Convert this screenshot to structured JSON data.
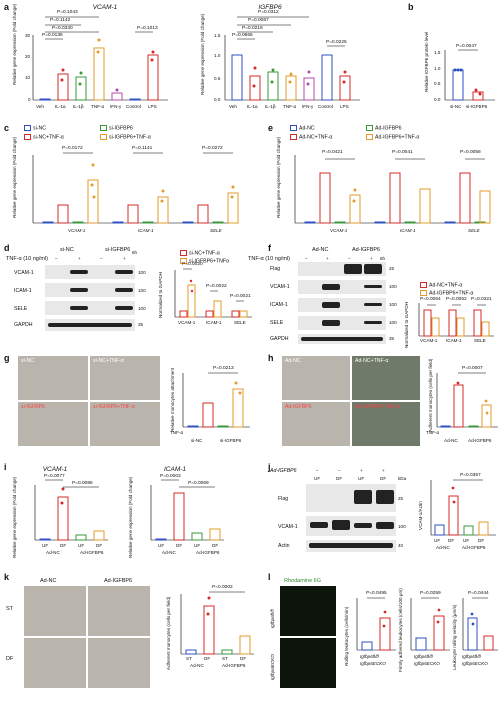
{
  "panels": {
    "a": {
      "label": "a",
      "left": {
        "title": "VCAM-1",
        "ylabel": "Relative gene expression (Fold change)",
        "yticks": [
          "0",
          "10",
          "20",
          "30"
        ],
        "categories": [
          "Veh",
          "IL-1α",
          "IL-1β",
          "TNF-α",
          "IFN-γ",
          "Control",
          "LPS"
        ],
        "sig": [
          "P=0.1043",
          "P=0.1142",
          "P=0.0340",
          "P=0.0136",
          "P=0.1013"
        ]
      },
      "right": {
        "title": "IGFBP6",
        "ylabel": "Relative gene expression (Fold change)",
        "yticks": [
          "0.0",
          "0.5",
          "1.0",
          "1.5"
        ],
        "categories": [
          "Veh",
          "IL-1α",
          "IL-1β",
          "TNF-α",
          "IFN-γ",
          "Control",
          "LPS"
        ],
        "sig": [
          "P=0.0312",
          "P=0.0087",
          "P=0.0218",
          "P=0.0666",
          "P=0.0225"
        ]
      }
    },
    "b": {
      "label": "b",
      "ylabel": "Relative IGFBP6 protein level",
      "categories": [
        "si-NC",
        "si-IGFBP6"
      ],
      "sig": "P=0.0047",
      "yticks": [
        "0.0",
        "0.5",
        "1.0",
        "1.5"
      ]
    },
    "c": {
      "label": "c",
      "legend": [
        "si-NC",
        "si-NC+TNF-α",
        "si-IGFBP6",
        "si-IGFBP6+TNF-α"
      ],
      "ylabel": "Relative gene expression (Fold change)",
      "categories": [
        "VCAM-1",
        "ICAM-1",
        "SELE"
      ],
      "sig": [
        "P=0.0172",
        "P=0.1141",
        "P=0.0272"
      ]
    },
    "e": {
      "label": "e",
      "legend": [
        "Ad-NC",
        "Ad-NC+TNF-α",
        "Ad-IGFBP6",
        "Ad-IGFBP6+TNF-α"
      ],
      "ylabel": "Relative gene expression (Fold change)",
      "categories": [
        "VCAM-1",
        "ICAM-1",
        "SELE"
      ],
      "sig": [
        "P=0.0421",
        "P=0.0041",
        "P=0.0058"
      ]
    },
    "d": {
      "label": "d",
      "groups": [
        "si-NC",
        "si-IGFBP6"
      ],
      "treatment": "TNF-α (10 ng/ml)",
      "lanes": [
        "–",
        "+",
        "–",
        "+"
      ],
      "time": "6h",
      "rows": [
        "VCAM-1",
        "ICAM-1",
        "SELE",
        "GAPDH"
      ],
      "kda": [
        "100",
        "100",
        "100",
        "35"
      ],
      "legend": [
        "si-NC+TNF-α",
        "si-IGFBP6+TNFα"
      ],
      "ylabel": "Normalized to GAPDH",
      "categories": [
        "VCAM-1",
        "ICAM-1",
        "SELE"
      ],
      "sig": [
        "P=0.0020",
        "P=0.0022",
        "P=0.0021"
      ]
    },
    "f": {
      "label": "f",
      "groups": [
        "Ad-NC",
        "Ad-IGFBP6"
      ],
      "treatment": "TNF-α (10 ng/ml)",
      "lanes": [
        "–",
        "+",
        "–",
        "+"
      ],
      "time": "6h",
      "rows": [
        "Flag",
        "VCAM-1",
        "ICAM-1",
        "SELE",
        "GAPDH"
      ],
      "kda": [
        "25",
        "100",
        "100",
        "100",
        "35"
      ],
      "legend": [
        "Ad-NC+TNF-α",
        "Ad-IGFBP6+TNF-α"
      ],
      "ylabel": "Normalized to GAPDH",
      "categories": [
        "VCAM-1",
        "ICAM-1",
        "SELE"
      ],
      "sig": [
        "P=0.0064",
        "P=0.0052",
        "P=0.0321"
      ]
    },
    "g": {
      "label": "g",
      "images": [
        "si-NC",
        "si-NC+TNF-α",
        "si-IGFBP6",
        "si-IGFBP6+TNF-α"
      ],
      "ylabel": "Relative monocytes attachment",
      "sig": "P=0.0213",
      "tnf": "TNF-α",
      "groups": [
        "si-NC",
        "si-IGFBP6"
      ]
    },
    "h": {
      "label": "h",
      "images": [
        "Ad-NC",
        "Ad-NC+TNF-α",
        "Ad-IGFBP6",
        "Ad-IGFBP6+TNF-α"
      ],
      "ylabel": "Adherent monocytes (cells per field)",
      "sig": "P=0.0007",
      "tnf": "TNF-α",
      "groups": [
        "Ad-NC",
        "Ad-IGFBP6"
      ]
    },
    "i": {
      "label": "i",
      "left": {
        "title": "VCAM-1",
        "sig": [
          "P=0.0077",
          "P=0.0086"
        ]
      },
      "right": {
        "title": "ICAM-1",
        "sig": [
          "P=0.0003",
          "P=0.0069"
        ]
      },
      "ylabel": "Relative gene expression (Fold change)",
      "xcats": [
        "UF",
        "DF",
        "UF",
        "DF"
      ],
      "groups": [
        "Ad-NC",
        "Ad-IGFBP6"
      ]
    },
    "j": {
      "label": "j",
      "treatment": "Ad-IGFBP6",
      "lanes": [
        "UF",
        "DF",
        "UF",
        "DF"
      ],
      "lanesign": [
        "–",
        "–",
        "+",
        "+"
      ],
      "rows": [
        "Flag",
        "VCAM-1",
        "Actin"
      ],
      "kda": [
        "25",
        "100",
        "40"
      ],
      "kda_label": "kDa",
      "ylabel": "VCAM-1/Actin",
      "sig": "P=0.0357",
      "xcats": [
        "UF",
        "DF",
        "UF",
        "DF"
      ],
      "groups": [
        "Ad-NC",
        "Ad-IGFBP6"
      ]
    },
    "k": {
      "label": "k",
      "cols": [
        "Ad-NC",
        "Ad-IGFBP6"
      ],
      "rows": [
        "ST",
        "DF"
      ],
      "ylabel": "Adherent monocytes (cells per field)",
      "sig": "P=0.0002",
      "xcats": [
        "ST",
        "DF",
        "ST",
        "DF"
      ],
      "groups": [
        "Ad-NC",
        "Ad-IGFBP6"
      ]
    },
    "l": {
      "label": "l",
      "stain": "Rhodamine 6G",
      "rows": [
        "Igfbp6fl/fl",
        "Igfbp6ECKO"
      ],
      "plots": [
        {
          "ylabel": "Rolling leukocytes (cells/min)",
          "sig": "P=0.0495"
        },
        {
          "ylabel": "Firmly adhered leukocytes (cells/100 μm)",
          "sig": "P=0.0259"
        },
        {
          "ylabel": "Leukocyte rolling velocity (μm/s)",
          "sig": "P=0.0444"
        }
      ],
      "xcats": [
        "Igfbp6fl/fl",
        "Igfbp6ECKO"
      ]
    }
  },
  "colors": {
    "blue": "#2f4fc4",
    "red": "#d42a2a",
    "green": "#3a9a3a",
    "orange": "#e39b2b",
    "purple": "#b44aa8"
  }
}
